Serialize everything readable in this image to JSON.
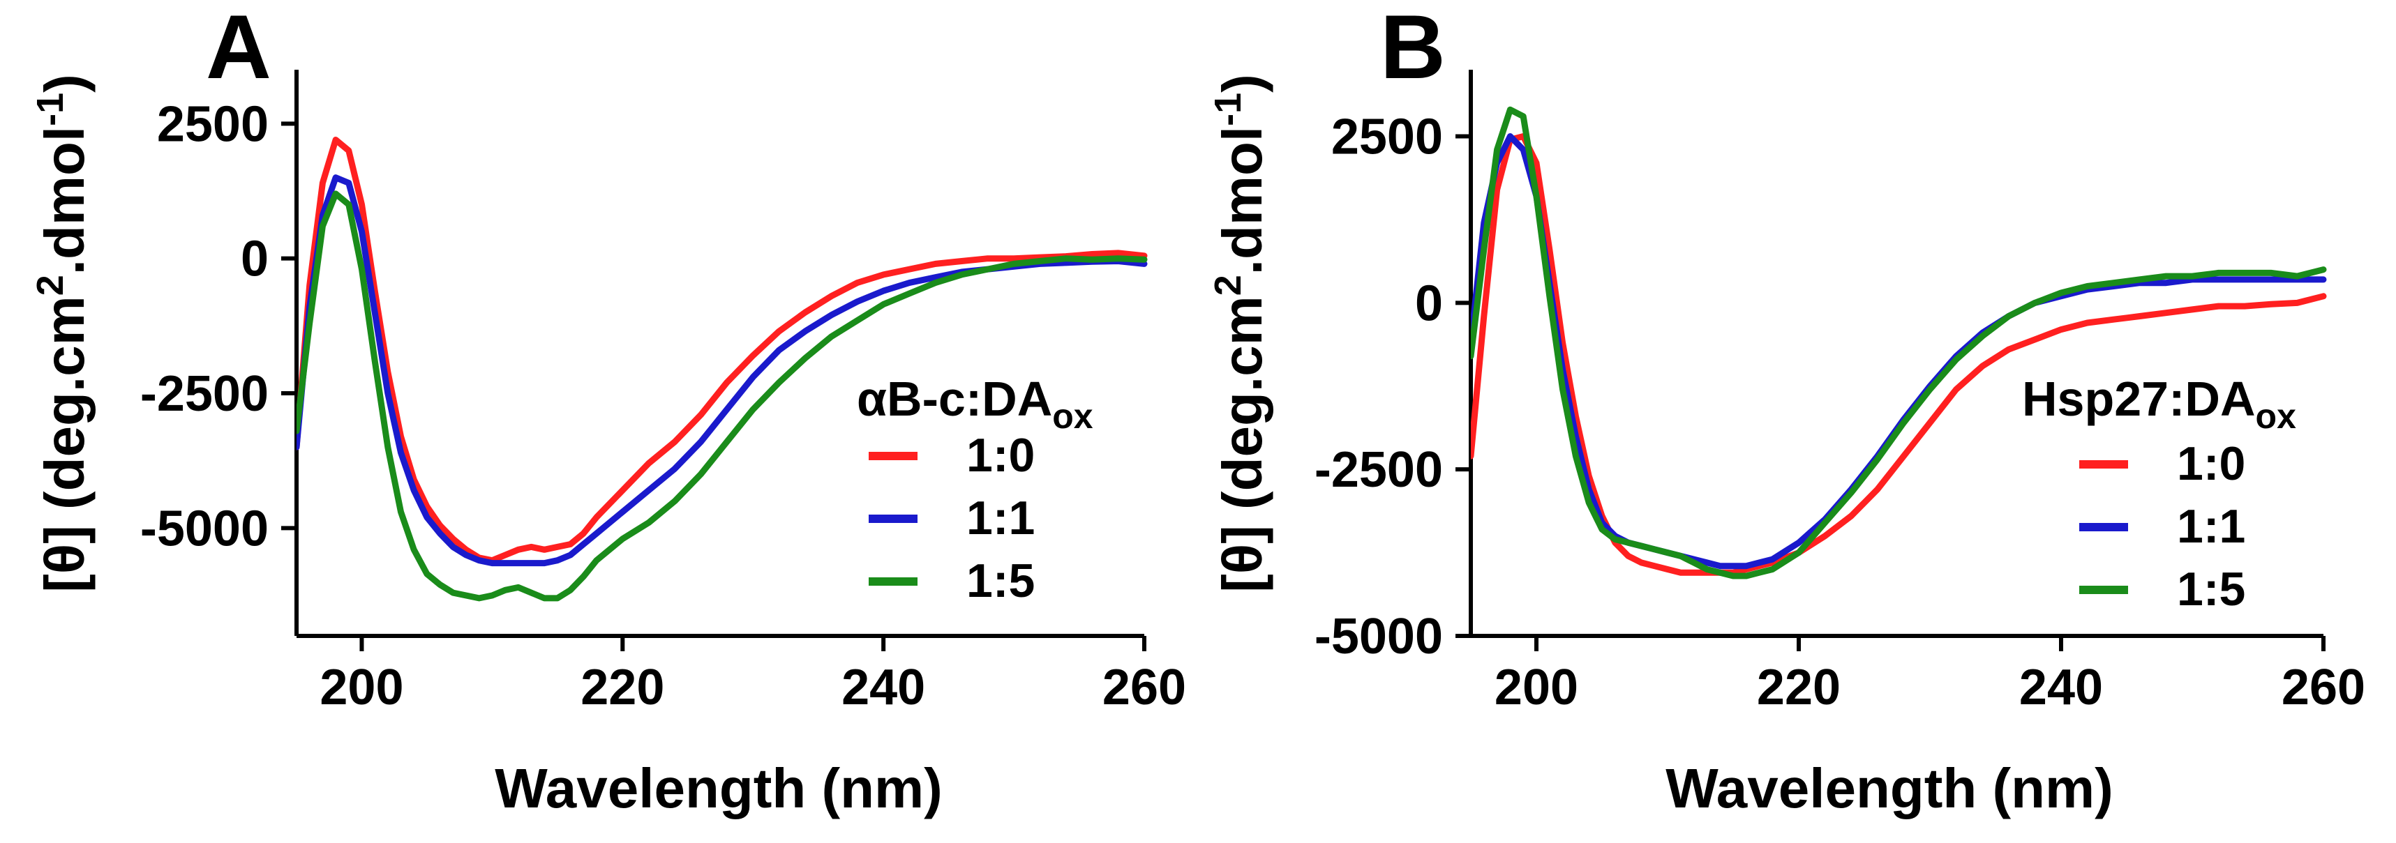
{
  "colors": {
    "red": "#ff2020",
    "blue": "#1a1acc",
    "green": "#1a8c1a"
  },
  "chart_data": [
    {
      "type": "line",
      "panel_label": "A",
      "xlabel": "Wavelength (nm)",
      "ylabel_parts": {
        "prefix": "[θ] (deg.cm",
        "sup1": "2",
        "mid": ".dmol",
        "sup2": "-1",
        "suffix": ")"
      },
      "xlim": [
        195,
        260
      ],
      "ylim": [
        -7000,
        3500
      ],
      "xticks": [
        200,
        220,
        240,
        260
      ],
      "yticks": [
        2500,
        0,
        -2500,
        -5000
      ],
      "legend": {
        "position": "center-right",
        "title": "αB-c:DA",
        "title_sub": "ox"
      },
      "series": [
        {
          "name": "1:0",
          "color": "#ff2020",
          "x": [
            195,
            196,
            197,
            198,
            199,
            200,
            201,
            202,
            203,
            204,
            205,
            206,
            207,
            208,
            209,
            210,
            211,
            212,
            213,
            214,
            215,
            216,
            217,
            218,
            220,
            222,
            224,
            226,
            228,
            230,
            232,
            234,
            236,
            238,
            240,
            242,
            244,
            246,
            248,
            250,
            252,
            254,
            256,
            258,
            260
          ],
          "y": [
            -3500,
            -500,
            1400,
            2200,
            2000,
            1000,
            -600,
            -2100,
            -3300,
            -4100,
            -4600,
            -4950,
            -5200,
            -5400,
            -5550,
            -5600,
            -5500,
            -5400,
            -5350,
            -5400,
            -5350,
            -5300,
            -5100,
            -4800,
            -4300,
            -3800,
            -3400,
            -2900,
            -2300,
            -1800,
            -1350,
            -1000,
            -700,
            -450,
            -300,
            -200,
            -100,
            -50,
            0,
            0,
            20,
            40,
            80,
            100,
            50
          ]
        },
        {
          "name": "1:1",
          "color": "#1a1acc",
          "x": [
            195,
            196,
            197,
            198,
            199,
            200,
            201,
            202,
            203,
            204,
            205,
            206,
            207,
            208,
            209,
            210,
            211,
            212,
            213,
            214,
            215,
            216,
            217,
            218,
            220,
            222,
            224,
            226,
            228,
            230,
            232,
            234,
            236,
            238,
            240,
            242,
            244,
            246,
            248,
            250,
            252,
            254,
            256,
            258,
            260
          ],
          "y": [
            -3500,
            -900,
            800,
            1500,
            1400,
            500,
            -1000,
            -2500,
            -3600,
            -4300,
            -4800,
            -5100,
            -5350,
            -5500,
            -5600,
            -5650,
            -5650,
            -5650,
            -5650,
            -5650,
            -5600,
            -5500,
            -5300,
            -5100,
            -4700,
            -4300,
            -3900,
            -3400,
            -2800,
            -2200,
            -1700,
            -1350,
            -1050,
            -800,
            -600,
            -450,
            -350,
            -250,
            -200,
            -150,
            -100,
            -80,
            -60,
            -50,
            -100
          ]
        },
        {
          "name": "1:5",
          "color": "#1a8c1a",
          "x": [
            195,
            196,
            197,
            198,
            199,
            200,
            201,
            202,
            203,
            204,
            205,
            206,
            207,
            208,
            209,
            210,
            211,
            212,
            213,
            214,
            215,
            216,
            217,
            218,
            220,
            222,
            224,
            226,
            228,
            230,
            232,
            234,
            236,
            238,
            240,
            242,
            244,
            246,
            248,
            250,
            252,
            254,
            256,
            258,
            260
          ],
          "y": [
            -3200,
            -1200,
            600,
            1200,
            1000,
            -200,
            -1900,
            -3500,
            -4700,
            -5400,
            -5850,
            -6050,
            -6200,
            -6250,
            -6300,
            -6250,
            -6150,
            -6100,
            -6200,
            -6300,
            -6300,
            -6150,
            -5900,
            -5600,
            -5200,
            -4900,
            -4500,
            -4000,
            -3400,
            -2800,
            -2300,
            -1850,
            -1450,
            -1150,
            -850,
            -650,
            -450,
            -300,
            -200,
            -100,
            -50,
            0,
            -20,
            0,
            -20
          ]
        }
      ]
    },
    {
      "type": "line",
      "panel_label": "B",
      "xlabel": "Wavelength (nm)",
      "ylabel_parts": {
        "prefix": "[θ] (deg.cm",
        "sup1": "2",
        "mid": ".dmol",
        "sup2": "-1",
        "suffix": ")"
      },
      "xlim": [
        195,
        260
      ],
      "ylim": [
        -5000,
        3500
      ],
      "xticks": [
        200,
        220,
        240,
        260
      ],
      "yticks": [
        2500,
        0,
        -2500,
        -5000
      ],
      "legend": {
        "position": "center-right",
        "title": "Hsp27:DA",
        "title_sub": "ox"
      },
      "series": [
        {
          "name": "1:0",
          "color": "#ff2020",
          "x": [
            195,
            196,
            197,
            198,
            199,
            200,
            201,
            202,
            203,
            204,
            205,
            206,
            207,
            208,
            209,
            210,
            211,
            212,
            213,
            214,
            215,
            216,
            217,
            218,
            220,
            222,
            224,
            226,
            228,
            230,
            232,
            234,
            236,
            238,
            240,
            242,
            244,
            246,
            248,
            250,
            252,
            254,
            256,
            258,
            260
          ],
          "y": [
            -2300,
            -200,
            1700,
            2450,
            2500,
            2100,
            800,
            -600,
            -1700,
            -2600,
            -3200,
            -3600,
            -3800,
            -3900,
            -3950,
            -4000,
            -4050,
            -4050,
            -4050,
            -4050,
            -4050,
            -4000,
            -3950,
            -3900,
            -3750,
            -3500,
            -3200,
            -2800,
            -2300,
            -1800,
            -1300,
            -950,
            -700,
            -550,
            -400,
            -300,
            -250,
            -200,
            -150,
            -100,
            -50,
            -50,
            -20,
            0,
            100
          ]
        },
        {
          "name": "1:1",
          "color": "#1a1acc",
          "x": [
            195,
            196,
            197,
            198,
            199,
            200,
            201,
            202,
            203,
            204,
            205,
            206,
            207,
            208,
            209,
            210,
            211,
            212,
            213,
            214,
            215,
            216,
            217,
            218,
            220,
            222,
            224,
            226,
            228,
            230,
            232,
            234,
            236,
            238,
            240,
            242,
            244,
            246,
            248,
            250,
            252,
            254,
            256,
            258,
            260
          ],
          "y": [
            -600,
            1200,
            2100,
            2500,
            2300,
            1600,
            300,
            -1000,
            -2000,
            -2800,
            -3300,
            -3500,
            -3600,
            -3650,
            -3700,
            -3750,
            -3800,
            -3850,
            -3900,
            -3950,
            -3950,
            -3950,
            -3900,
            -3850,
            -3600,
            -3250,
            -2800,
            -2300,
            -1750,
            -1250,
            -800,
            -450,
            -200,
            0,
            100,
            200,
            250,
            300,
            300,
            350,
            350,
            350,
            350,
            350,
            350
          ]
        },
        {
          "name": "1:5",
          "color": "#1a8c1a",
          "x": [
            195,
            196,
            197,
            198,
            199,
            200,
            201,
            202,
            203,
            204,
            205,
            206,
            207,
            208,
            209,
            210,
            211,
            212,
            213,
            214,
            215,
            216,
            217,
            218,
            220,
            222,
            224,
            226,
            228,
            230,
            232,
            234,
            236,
            238,
            240,
            242,
            244,
            246,
            248,
            250,
            252,
            254,
            256,
            258,
            260
          ],
          "y": [
            -800,
            800,
            2300,
            2900,
            2800,
            1600,
            100,
            -1300,
            -2300,
            -3000,
            -3400,
            -3550,
            -3600,
            -3650,
            -3700,
            -3750,
            -3800,
            -3900,
            -4000,
            -4050,
            -4100,
            -4100,
            -4050,
            -4000,
            -3750,
            -3300,
            -2850,
            -2350,
            -1800,
            -1300,
            -850,
            -500,
            -200,
            0,
            150,
            250,
            300,
            350,
            400,
            400,
            450,
            450,
            450,
            400,
            500
          ]
        }
      ]
    }
  ]
}
